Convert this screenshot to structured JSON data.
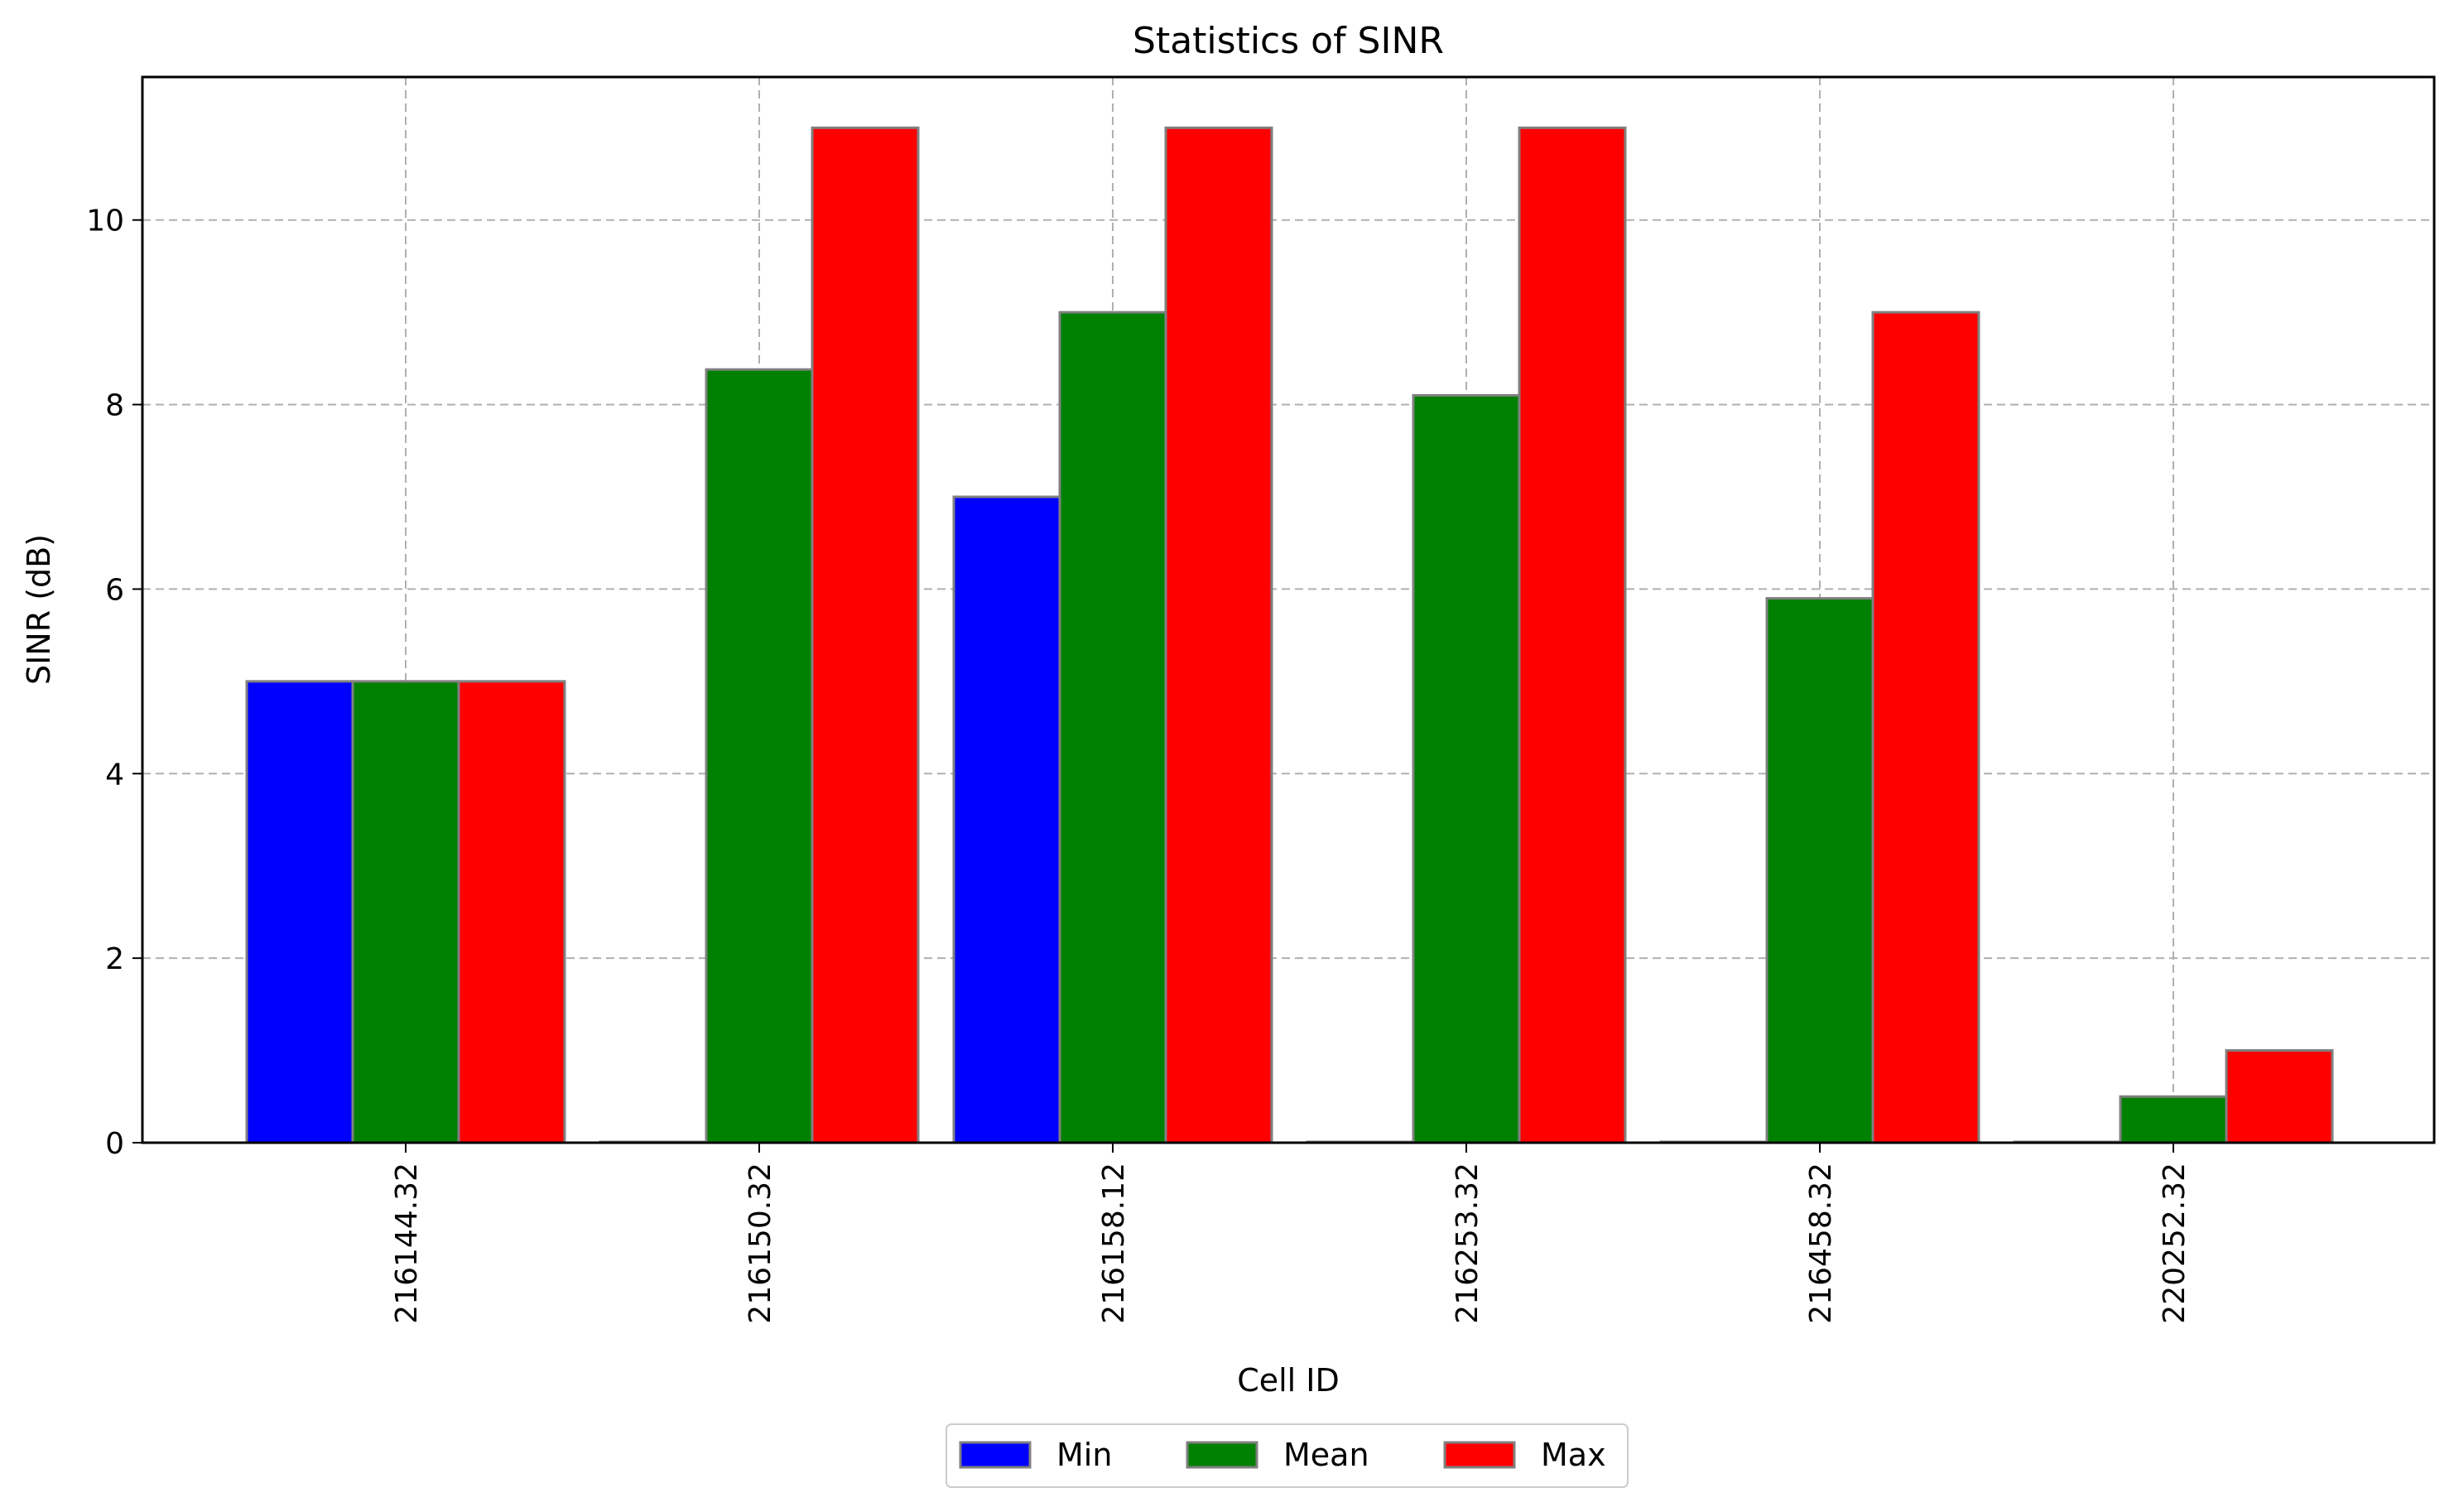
{
  "chart_data": {
    "type": "bar",
    "title": "Statistics of SINR",
    "xlabel": "Cell ID",
    "ylabel": "SINR (dB)",
    "categories": [
      "216144.32",
      "216150.32",
      "216158.12",
      "216253.32",
      "216458.32",
      "220252.32"
    ],
    "series": [
      {
        "name": "Min",
        "color": "#0000ff",
        "values": [
          5,
          0,
          7,
          0,
          0,
          0
        ]
      },
      {
        "name": "Mean",
        "color": "#008000",
        "values": [
          5,
          8.38,
          9,
          8.1,
          5.9,
          0.5
        ]
      },
      {
        "name": "Max",
        "color": "#ff0000",
        "values": [
          5,
          11,
          11,
          11,
          9,
          1
        ]
      }
    ],
    "ylim": [
      0,
      11.55
    ],
    "yticks": [
      0,
      2,
      4,
      6,
      8,
      10
    ],
    "grid": true,
    "legend_position": "bottom-center"
  }
}
